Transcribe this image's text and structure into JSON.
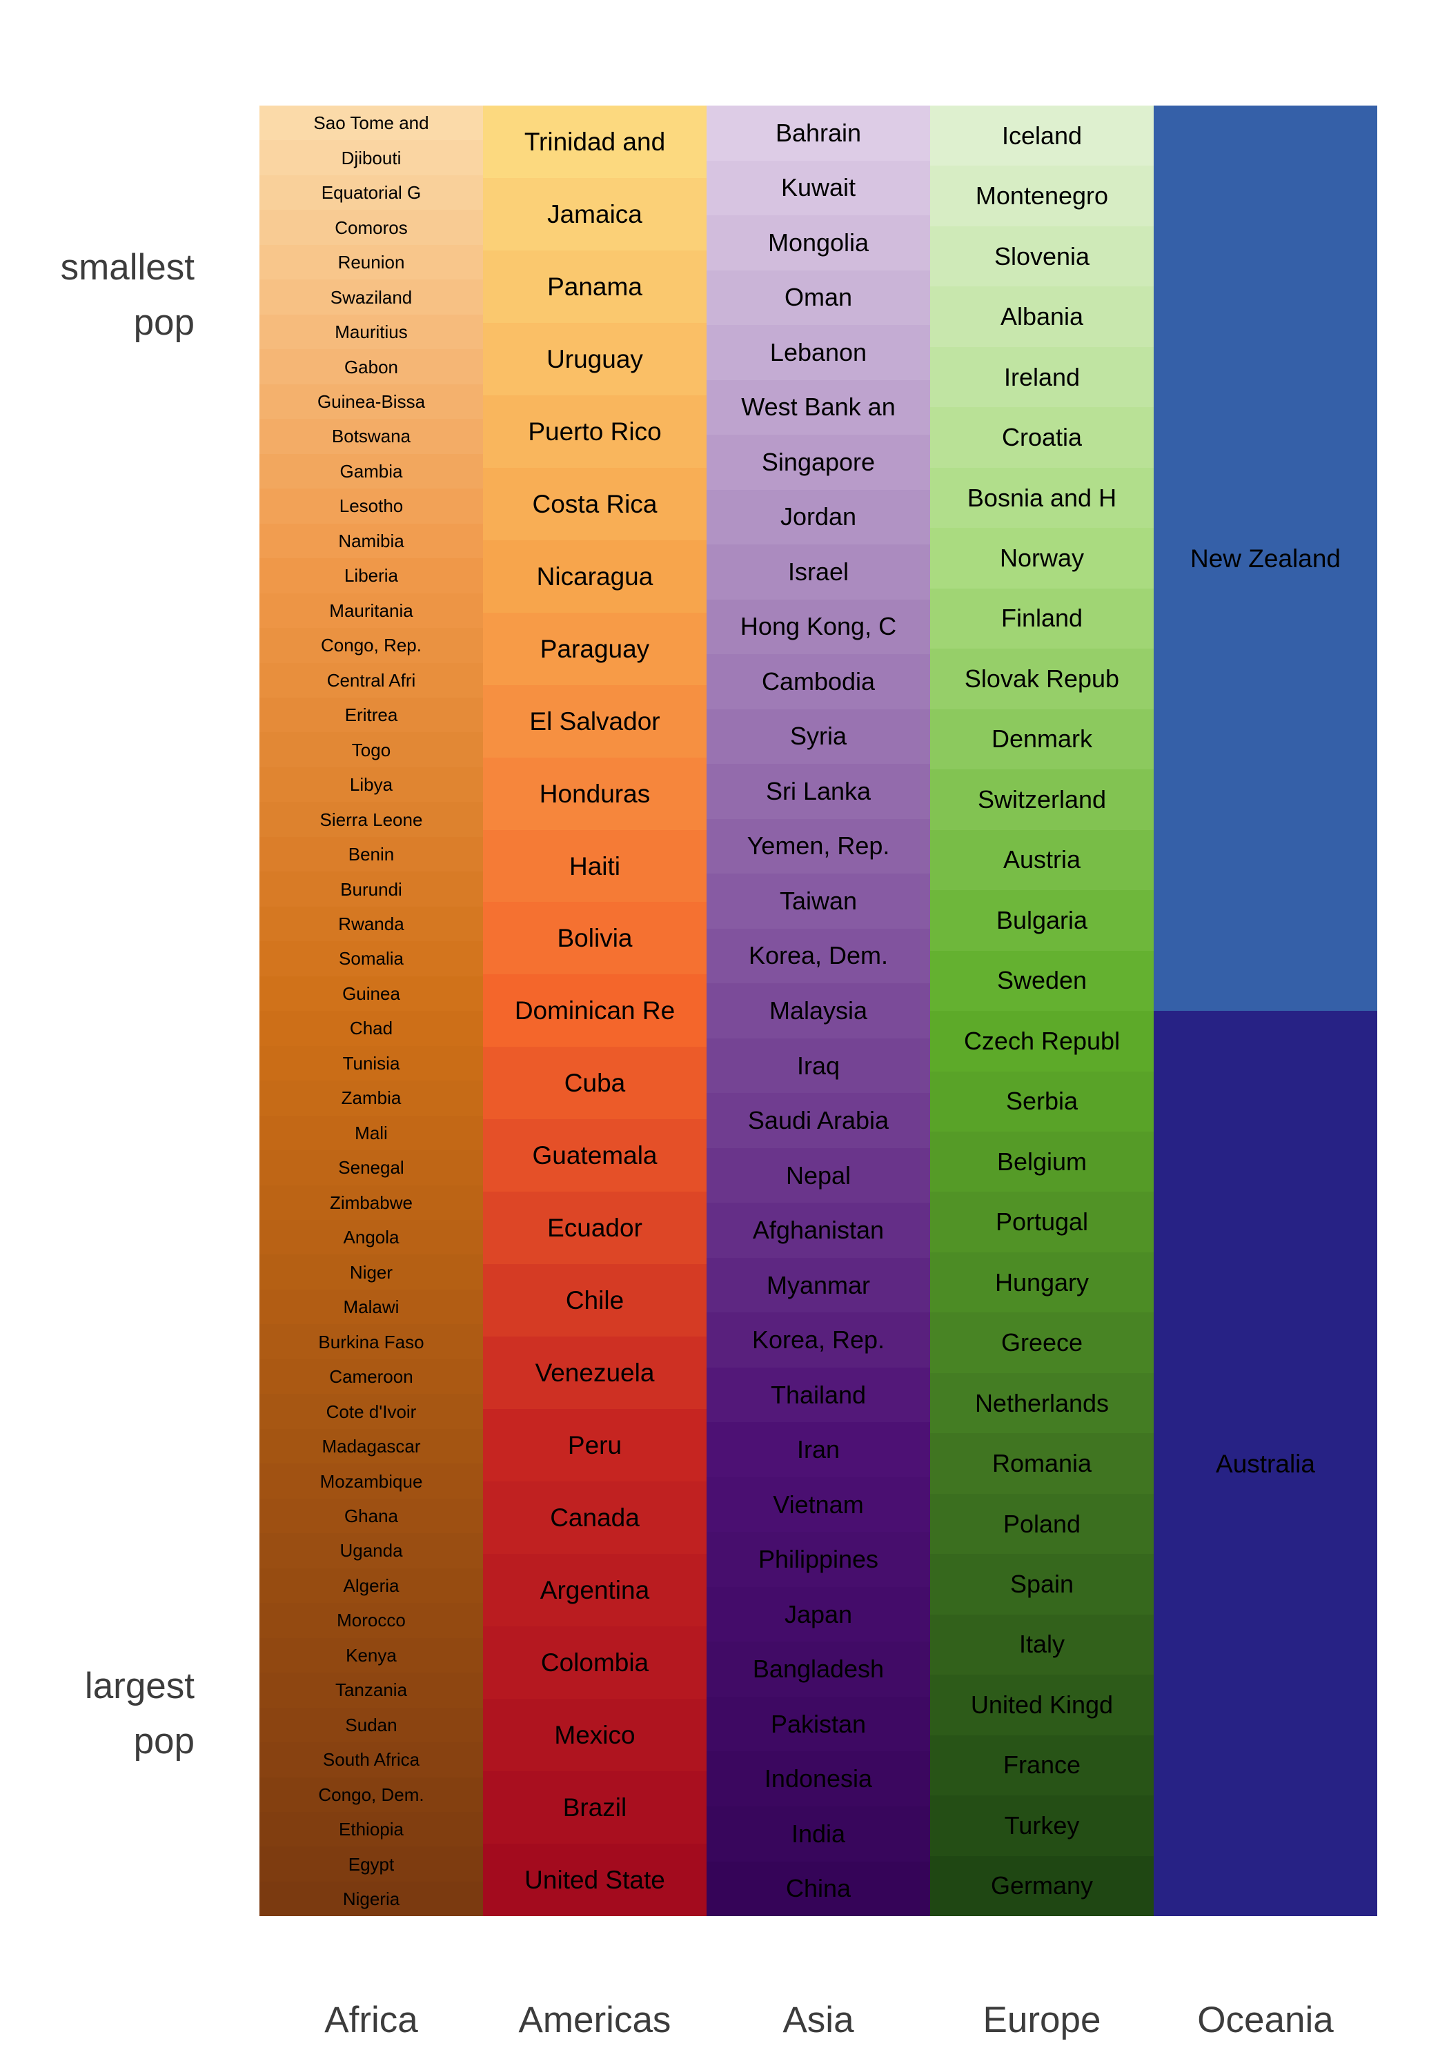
{
  "axis": {
    "y_top_label": "smallest\npop",
    "y_bottom_label": "largest\npop"
  },
  "chart_data": {
    "type": "heatmap",
    "title": "",
    "xlabel": "",
    "ylabel": "",
    "description": "Countries grouped by continent in columns; within each column countries are ordered from smallest population (top) to largest population (bottom), color-shaded light to dark by population rank.",
    "legend_position": "none",
    "grid": false,
    "categories": [
      "Africa",
      "Americas",
      "Asia",
      "Europe",
      "Oceania"
    ],
    "order": [
      "smallest pop",
      "largest pop"
    ],
    "columns": [
      {
        "continent": "Africa",
        "color_stops": [
          "#fbdaa9",
          "#f0994a",
          "#cf7018",
          "#a35412",
          "#7b3a10"
        ],
        "countries": [
          "Sao Tome and",
          "Djibouti",
          "Equatorial G",
          "Comoros",
          "Reunion",
          "Swaziland",
          "Mauritius",
          "Gabon",
          "Guinea-Bissa",
          "Botswana",
          "Gambia",
          "Lesotho",
          "Namibia",
          "Liberia",
          "Mauritania",
          "Congo, Rep.",
          "Central Afri",
          "Eritrea",
          "Togo",
          "Libya",
          "Sierra Leone",
          "Benin",
          "Burundi",
          "Rwanda",
          "Somalia",
          "Guinea",
          "Chad",
          "Tunisia",
          "Zambia",
          "Mali",
          "Senegal",
          "Zimbabwe",
          "Angola",
          "Niger",
          "Malawi",
          "Burkina Faso",
          "Cameroon",
          "Cote d'Ivoir",
          "Madagascar",
          "Mozambique",
          "Ghana",
          "Uganda",
          "Algeria",
          "Morocco",
          "Kenya",
          "Tanzania",
          "Sudan",
          "South Africa",
          "Congo, Dem.",
          "Ethiopia",
          "Egypt",
          "Nigeria"
        ]
      },
      {
        "continent": "Americas",
        "color_stops": [
          "#fcd97f",
          "#f7a54c",
          "#f4662b",
          "#c62521",
          "#a30b1e"
        ],
        "countries": [
          "Trinidad and",
          "Jamaica",
          "Panama",
          "Uruguay",
          "Puerto Rico",
          "Costa Rica",
          "Nicaragua",
          "Paraguay",
          "El Salvador",
          "Honduras",
          "Haiti",
          "Bolivia",
          "Dominican Re",
          "Cuba",
          "Guatemala",
          "Ecuador",
          "Chile",
          "Venezuela",
          "Peru",
          "Canada",
          "Argentina",
          "Colombia",
          "Mexico",
          "Brazil",
          "United State"
        ]
      },
      {
        "continent": "Asia",
        "color_stops": [
          "#ddcce6",
          "#ab8bbf",
          "#7b4b99",
          "#4d1174",
          "#350458"
        ],
        "countries": [
          "Bahrain",
          "Kuwait",
          "Mongolia",
          "Oman",
          "Lebanon",
          "West Bank an",
          "Singapore",
          "Jordan",
          "Israel",
          "Hong Kong, C",
          "Cambodia",
          "Syria",
          "Sri Lanka",
          "Yemen, Rep.",
          "Taiwan",
          "Korea, Dem.",
          "Malaysia",
          "Iraq",
          "Saudi Arabia",
          "Nepal",
          "Afghanistan",
          "Myanmar",
          "Korea, Rep.",
          "Thailand",
          "Iran",
          "Vietnam",
          "Philippines",
          "Japan",
          "Bangladesh",
          "Pakistan",
          "Indonesia",
          "India",
          "China"
        ]
      },
      {
        "continent": "Europe",
        "color_stops": [
          "#def0cf",
          "#a8da7d",
          "#5fae2a",
          "#417722",
          "#1f4713"
        ],
        "countries": [
          "Iceland",
          "Montenegro",
          "Slovenia",
          "Albania",
          "Ireland",
          "Croatia",
          "Bosnia and H",
          "Norway",
          "Finland",
          "Slovak Repub",
          "Denmark",
          "Switzerland",
          "Austria",
          "Bulgaria",
          "Sweden",
          "Czech Republ",
          "Serbia",
          "Belgium",
          "Portugal",
          "Hungary",
          "Greece",
          "Netherlands",
          "Romania",
          "Poland",
          "Spain",
          "Italy",
          "United Kingd",
          "France",
          "Turkey",
          "Germany"
        ]
      },
      {
        "continent": "Oceania",
        "color_stops": [
          "#3560a8",
          "#272285"
        ],
        "countries": [
          "New Zealand",
          "Australia"
        ]
      }
    ]
  }
}
